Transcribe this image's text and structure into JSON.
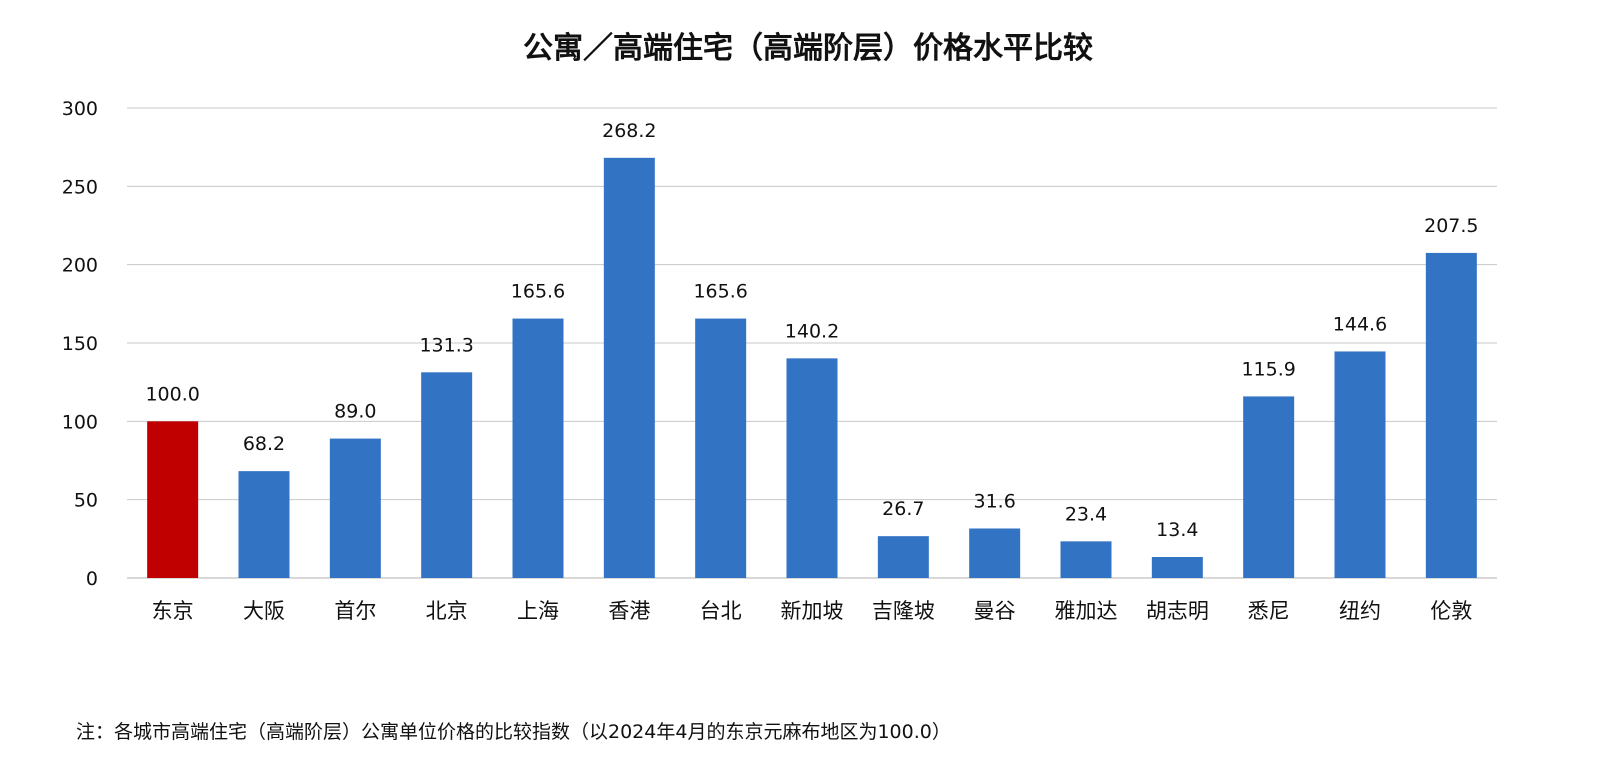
{
  "chart_data": {
    "type": "bar",
    "title": "公寓／高端住宅（高端阶层）价格水平比较",
    "xlabel": "",
    "ylabel": "",
    "ylim": [
      0,
      300
    ],
    "yticks": [
      0,
      50,
      100,
      150,
      200,
      250,
      300
    ],
    "grid": true,
    "categories": [
      "东京",
      "大阪",
      "首尔",
      "北京",
      "上海",
      "香港",
      "台北",
      "新加坡",
      "吉隆坡",
      "曼谷",
      "雅加达",
      "胡志明",
      "悉尼",
      "纽约",
      "伦敦"
    ],
    "values": [
      100.0,
      68.2,
      89.0,
      131.3,
      165.6,
      268.2,
      165.6,
      140.2,
      26.7,
      31.6,
      23.4,
      13.4,
      115.9,
      144.6,
      207.5
    ],
    "value_labels": [
      "100.0",
      "68.2",
      "89.0",
      "131.3",
      "165.6",
      "268.2",
      "165.6",
      "140.2",
      "26.7",
      "31.6",
      "23.4",
      "13.4",
      "115.9",
      "144.6",
      "207.5"
    ],
    "highlight_index": 0,
    "colors": {
      "bar": "#3273c4",
      "highlight": "#c00000",
      "grid": "#c8c8c8",
      "axis": "#b0b0b0"
    }
  },
  "footnote": "注：各城市高端住宅（高端阶层）公寓单位价格的比较指数（以2024年4月的东京元麻布地区为100.0）"
}
